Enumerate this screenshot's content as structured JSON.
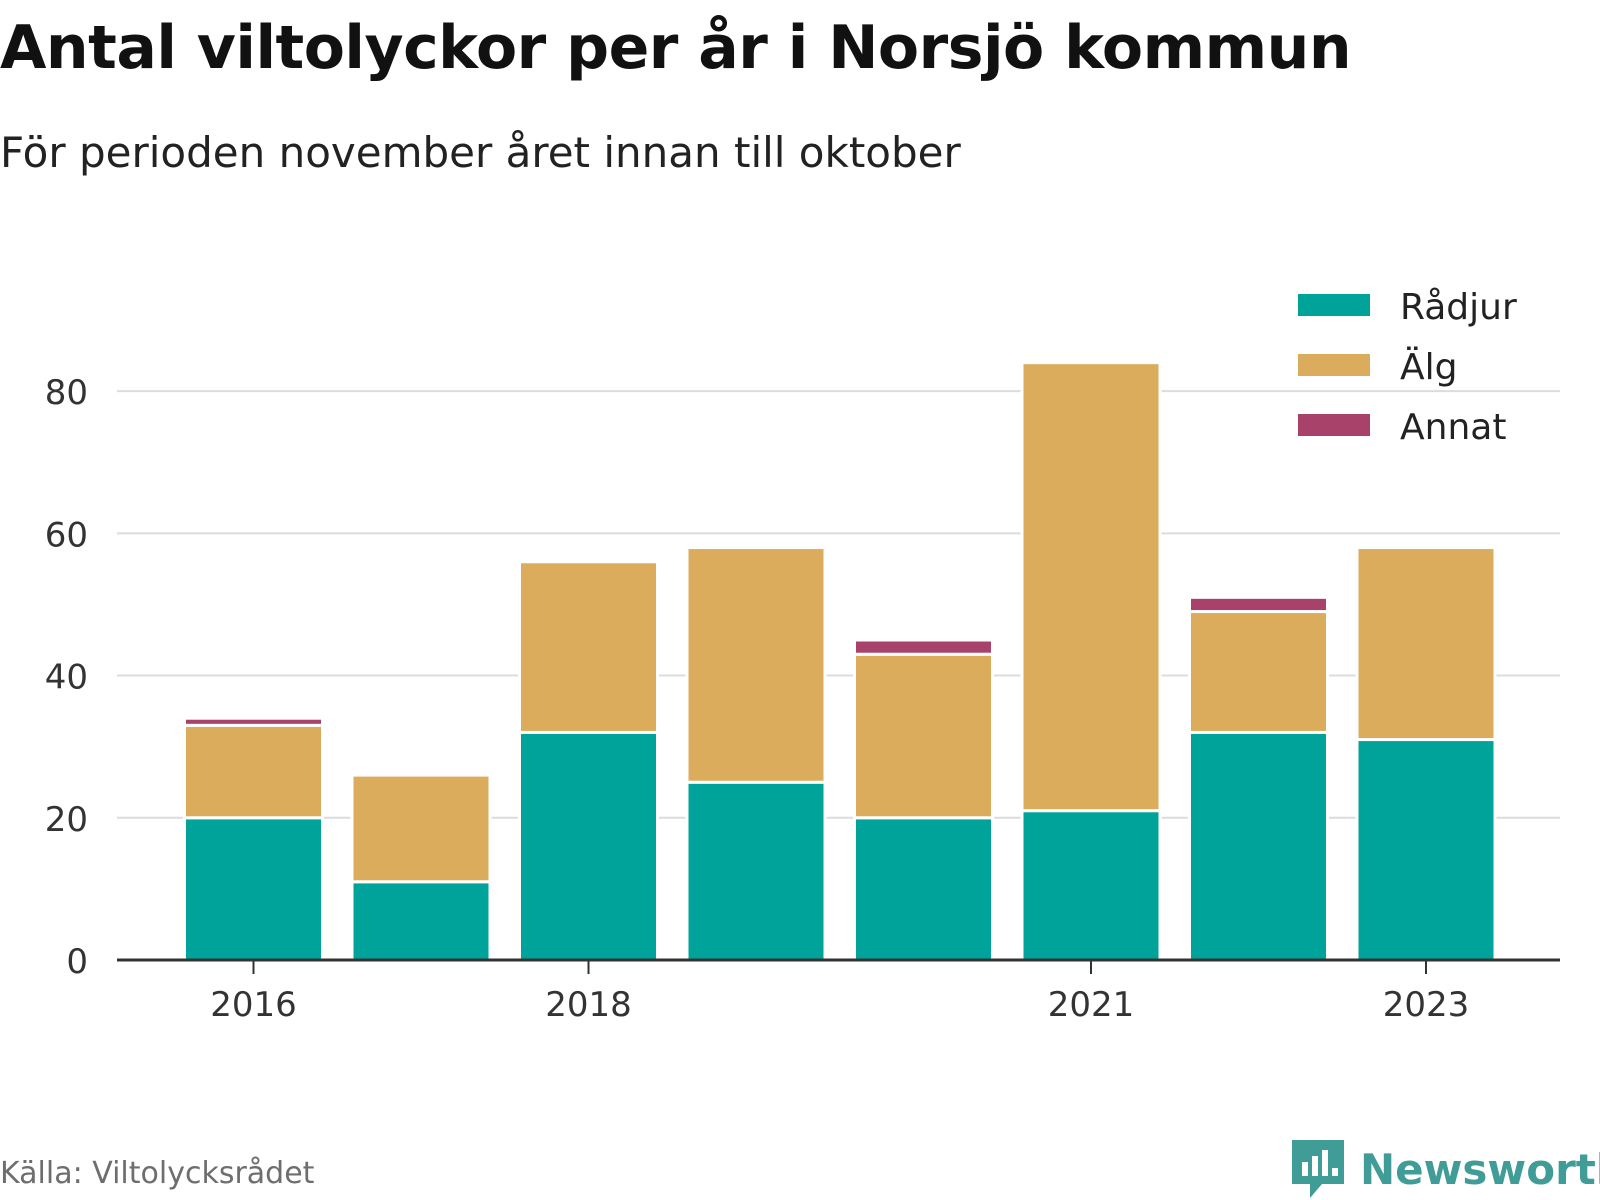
{
  "title": "Antal viltolyckor per år i Norsjö kommun",
  "subtitle": "För perioden november året innan till oktober",
  "source": "Källa: Viltolycksrådet",
  "brand": {
    "name": "Newsworthy",
    "icon": "newsworthy-logo-icon",
    "color": "#3f9c96"
  },
  "chart_data": {
    "type": "bar",
    "stacked": true,
    "categories": [
      "2016",
      "2017",
      "2018",
      "2019",
      "2020",
      "2021",
      "2022",
      "2023"
    ],
    "x_tick_labels": [
      "2016",
      "2018",
      "2021",
      "2023"
    ],
    "y_ticks": [
      0,
      20,
      40,
      60,
      80
    ],
    "ylim": [
      0,
      90
    ],
    "grid": true,
    "legend_position": "top-right",
    "series": [
      {
        "name": "Rådjur",
        "color": "#00a39a",
        "values": [
          20,
          11,
          32,
          25,
          20,
          21,
          32,
          31
        ]
      },
      {
        "name": "Älg",
        "color": "#dbac5b",
        "values": [
          13,
          15,
          24,
          33,
          23,
          63,
          17,
          27
        ]
      },
      {
        "name": "Annat",
        "color": "#a8426a",
        "values": [
          1,
          0,
          0,
          0,
          2,
          0,
          2,
          0
        ]
      }
    ]
  }
}
